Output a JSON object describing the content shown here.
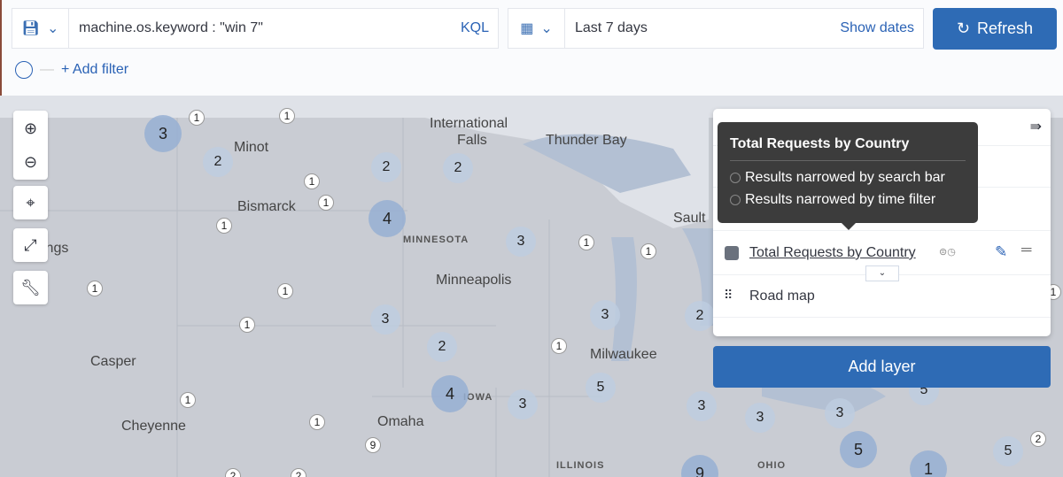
{
  "query": {
    "text": "machine.os.keyword : \"win 7\"",
    "language": "KQL"
  },
  "time": {
    "value": "Last 7 days",
    "show_dates": "Show dates"
  },
  "refresh_label": "Refresh",
  "add_filter": "+ Add filter",
  "map": {
    "places": [
      "Minot",
      "Bismarck",
      "International",
      "Falls",
      "Thunder Bay",
      "Sault",
      "Minneapolis",
      "ings",
      "Casper",
      "Milwaukee",
      "Omaha",
      "Cheyenne"
    ],
    "states": [
      "MINNESOTA",
      "IOWA",
      "ILLINOIS",
      "OHIO"
    ],
    "clusters": [
      "3",
      "1",
      "1",
      "2",
      "2",
      "2",
      "1",
      "1",
      "4",
      "1",
      "3",
      "1",
      "1",
      "1",
      "1",
      "3",
      "3",
      "2",
      "1",
      "2",
      "1",
      "1",
      "1",
      "4",
      "3",
      "5",
      "3",
      "3",
      "3",
      "5",
      "5",
      "5",
      "1",
      "2",
      "1",
      "9",
      "9",
      "2",
      "2"
    ]
  },
  "layers": {
    "items": [
      {
        "name": "Total Requests by Country",
        "color": "#6a717d"
      },
      {
        "name": "Road map"
      }
    ],
    "add_layer": "Add layer"
  },
  "tooltip": {
    "title": "Total Requests by Country",
    "lines": [
      "Results narrowed by search bar",
      "Results narrowed by time filter"
    ]
  }
}
